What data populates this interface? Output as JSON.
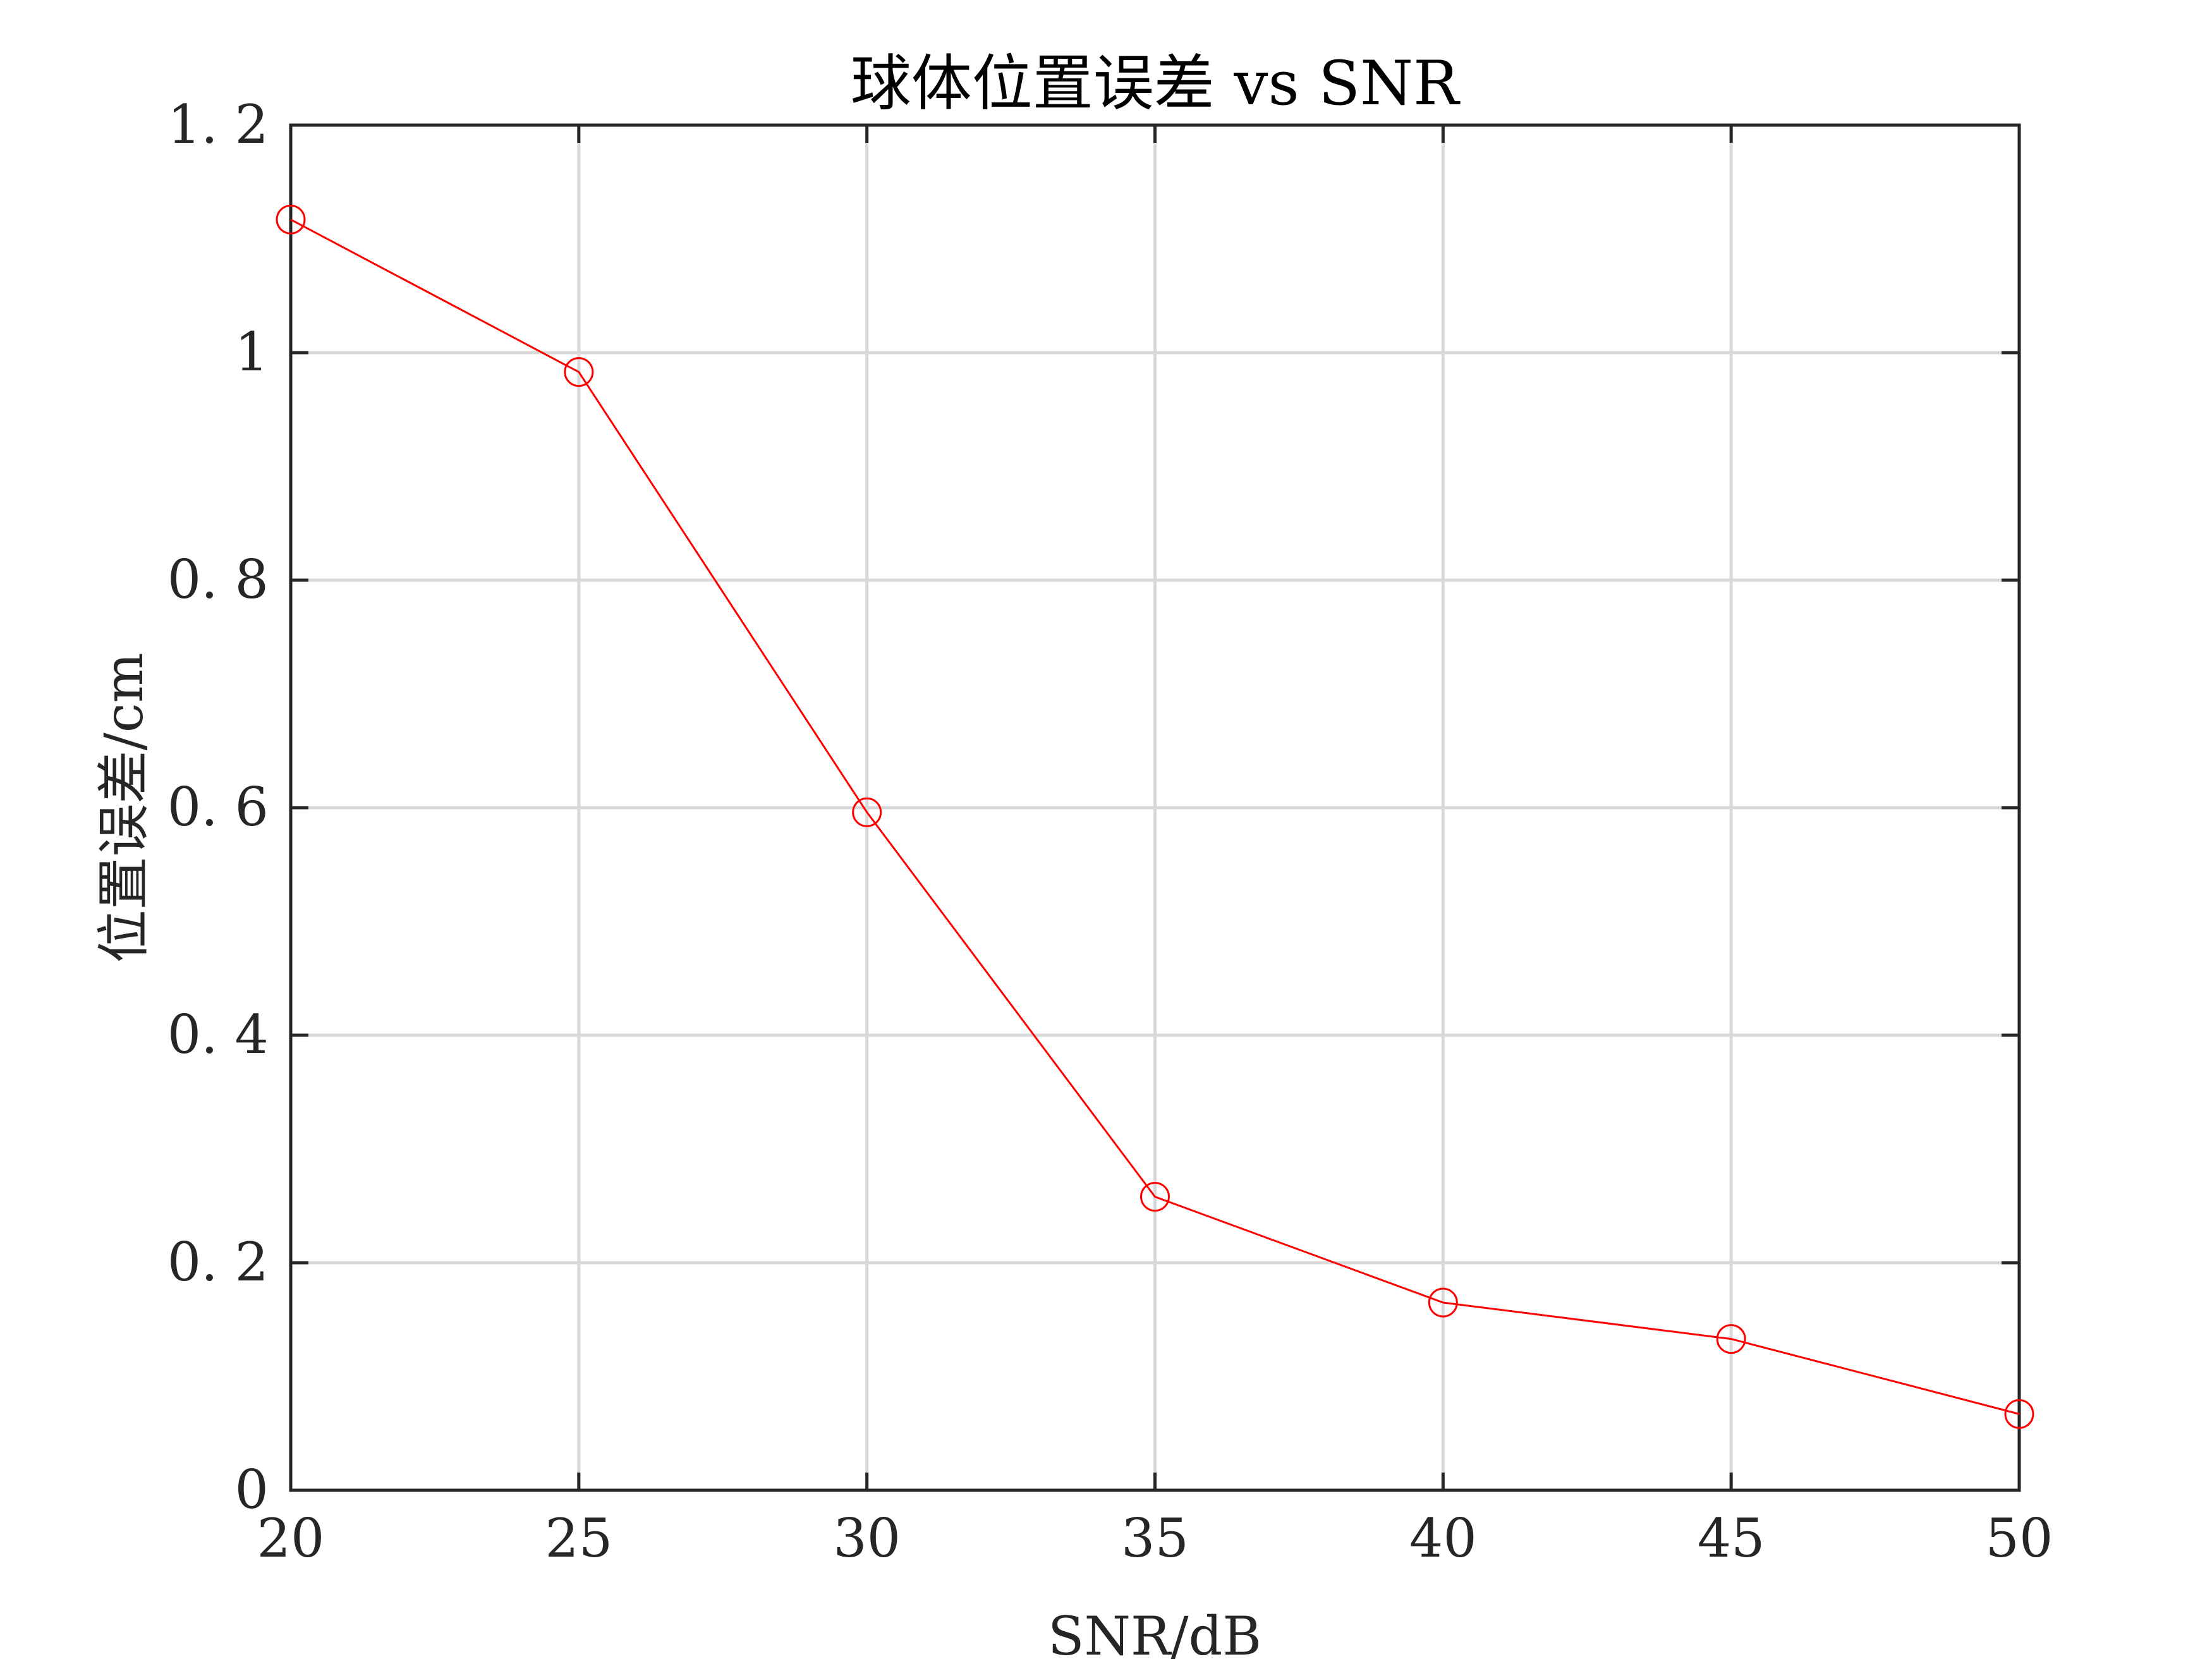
{
  "chart_data": {
    "type": "line",
    "title": "球体位置误差 vs SNR",
    "xlabel": "SNR/dB",
    "ylabel": "位置误差/cm",
    "xlim": [
      20,
      50
    ],
    "ylim": [
      0,
      1.2
    ],
    "x_ticks": [
      20,
      25,
      30,
      35,
      40,
      45,
      50
    ],
    "y_ticks": [
      0,
      0.2,
      0.4,
      0.6,
      0.8,
      1,
      1.2
    ],
    "x_tick_labels": [
      "20",
      "25",
      "30",
      "35",
      "40",
      "45",
      "50"
    ],
    "y_tick_labels": [
      "0",
      "0. 2",
      "0. 4",
      "0. 6",
      "0. 8",
      "1",
      "1. 2"
    ],
    "grid": true,
    "series": [
      {
        "x": [
          20,
          25,
          30,
          35,
          40,
          45,
          50
        ],
        "y": [
          1.117,
          0.983,
          0.596,
          0.258,
          0.165,
          0.133,
          0.067
        ],
        "color": "#ff0000",
        "marker": "circle"
      }
    ]
  }
}
